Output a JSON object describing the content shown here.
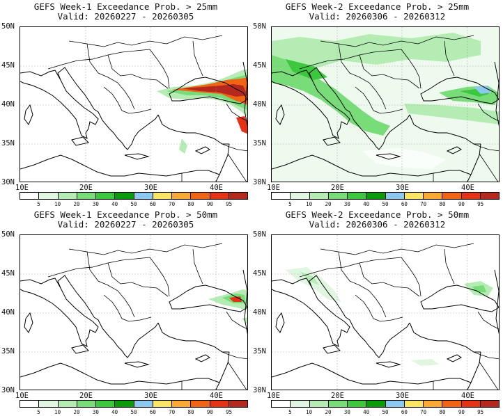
{
  "panels": [
    {
      "line1": "GEFS Week-1 Exceedance Prob. > 25mm",
      "line2": "Valid: 20260227 - 20260305"
    },
    {
      "line1": "GEFS Week-2 Exceedance Prob. > 25mm",
      "line2": "Valid: 20260306 - 20260312"
    },
    {
      "line1": "GEFS Week-1 Exceedance Prob. > 50mm",
      "line2": "Valid: 20260227 - 20260305"
    },
    {
      "line1": "GEFS Week-2 Exceedance Prob. > 50mm",
      "line2": "Valid: 20260306 - 20260312"
    }
  ],
  "lat_labels": [
    "50N",
    "45N",
    "40N",
    "35N",
    "30N"
  ],
  "lon_labels": [
    "10E",
    "20E",
    "30E",
    "40E"
  ],
  "colorbar": {
    "ticks": [
      "5",
      "10",
      "20",
      "30",
      "40",
      "50",
      "60",
      "70",
      "80",
      "90",
      "95"
    ],
    "colors": [
      "#ffffff",
      "#e1f6e1",
      "#b4ecb4",
      "#78dc78",
      "#3cc83c",
      "#0a9b0a",
      "#8cc8f0",
      "#fae664",
      "#faaa32",
      "#f06414",
      "#e63214",
      "#b4281e"
    ]
  }
}
